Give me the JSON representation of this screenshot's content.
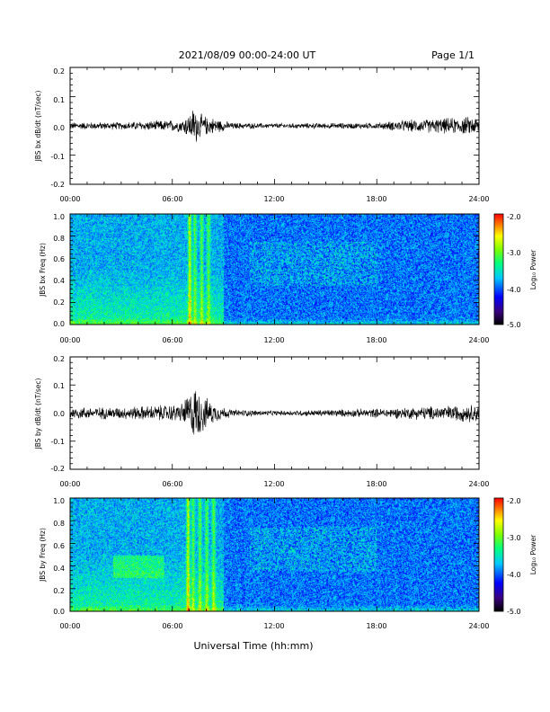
{
  "header": {
    "title": "2021/08/09  00:00-24:00 UT",
    "page": "Page 1/1"
  },
  "x_axis": {
    "title": "Universal Time (hh:mm)",
    "ticks": [
      "00:00",
      "06:00",
      "12:00",
      "18:00",
      "24:00"
    ],
    "range_hours": [
      0,
      24
    ]
  },
  "colorbar": {
    "label": "Log₁₀ Power",
    "ticks": [
      "-2.0",
      "-3.0",
      "-4.0",
      "-5.0"
    ],
    "range": [
      -5.0,
      -2.0
    ],
    "colormap": [
      "#000000",
      "#3a0080",
      "#0000ff",
      "#00c8ff",
      "#00ff80",
      "#80ff00",
      "#ffff00",
      "#ff8000",
      "#ff0000"
    ]
  },
  "chart_data": [
    {
      "type": "line",
      "ylabel": "JBS bx dB/dt (nT/sec)",
      "ylim": [
        -0.2,
        0.2
      ],
      "y_ticks": [
        "0.2",
        "0.1",
        "0.0",
        "-0.1",
        "-0.2"
      ],
      "baseline_amplitude": 0.01,
      "series": [
        {
          "x_hours": [
            0,
            3,
            6.5,
            7.0,
            7.3,
            7.6,
            8.0,
            8.5,
            9.5,
            12,
            18,
            19.4,
            23.9
          ],
          "amplitude": [
            0.012,
            0.012,
            0.02,
            0.04,
            0.065,
            0.04,
            0.03,
            0.025,
            0.01,
            0.008,
            0.01,
            0.018,
            0.03
          ]
        }
      ]
    },
    {
      "type": "heatmap",
      "ylabel": "JBS bx Freq (Hz)",
      "ylim": [
        0.0,
        1.0
      ],
      "y_ticks": [
        "1.0",
        "0.8",
        "0.6",
        "0.4",
        "0.2",
        "0.0"
      ],
      "bright_bands_hours": [
        7.0,
        7.3,
        7.7,
        8.1
      ],
      "zlim": [
        -5.0,
        -2.0
      ]
    },
    {
      "type": "line",
      "ylabel": "JBS by dB/dt (nT/sec)",
      "ylim": [
        -0.2,
        0.2
      ],
      "y_ticks": [
        "0.2",
        "0.1",
        "0.0",
        "-0.1",
        "-0.2"
      ],
      "baseline_amplitude": 0.012,
      "series": [
        {
          "x_hours": [
            0,
            3,
            6.5,
            7.0,
            7.3,
            7.6,
            8.0,
            8.5,
            9.5,
            12,
            18,
            20,
            23.9
          ],
          "amplitude": [
            0.02,
            0.02,
            0.03,
            0.07,
            0.09,
            0.08,
            0.05,
            0.03,
            0.012,
            0.008,
            0.015,
            0.02,
            0.03
          ]
        }
      ]
    },
    {
      "type": "heatmap",
      "ylabel": "JBS by Freq (Hz)",
      "ylim": [
        0.0,
        1.0
      ],
      "y_ticks": [
        "1.0",
        "0.8",
        "0.6",
        "0.4",
        "0.2",
        "0.0"
      ],
      "bright_bands_hours": [
        6.9,
        7.2,
        7.6,
        8.0,
        8.4
      ],
      "zlim": [
        -5.0,
        -2.0
      ]
    }
  ]
}
